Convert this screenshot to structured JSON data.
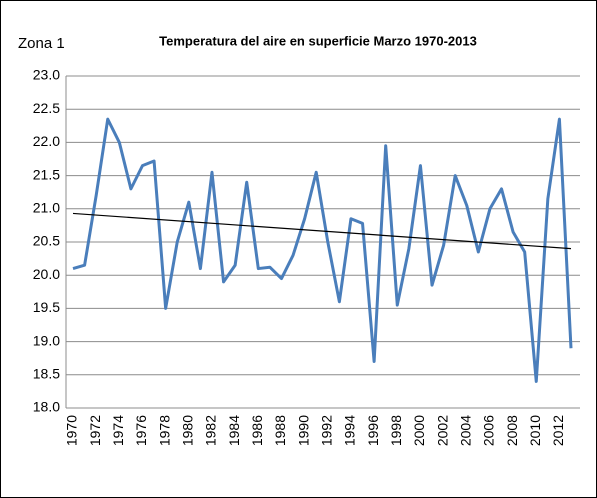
{
  "chart_data": {
    "type": "line",
    "label": "Zona  1",
    "title": "Temperatura del aire en superficie  Marzo 1970-2013",
    "categories": [
      "1970",
      null,
      "1972",
      null,
      "1974",
      null,
      "1976",
      null,
      "1978",
      null,
      "1980",
      null,
      "1982",
      null,
      "1984",
      null,
      "1986",
      null,
      "1988",
      null,
      "1990",
      null,
      "1992",
      null,
      "1994",
      null,
      "1996",
      null,
      "1998",
      null,
      "2000",
      null,
      "2002",
      null,
      "2004",
      null,
      "2006",
      null,
      "2008",
      null,
      "2010",
      null,
      "2012",
      null
    ],
    "series": [
      {
        "color": "#4a7ebb",
        "values": [
          20.1,
          20.15,
          21.2,
          22.35,
          22.0,
          21.3,
          21.65,
          21.72,
          19.5,
          20.5,
          21.1,
          20.1,
          21.55,
          19.9,
          20.15,
          21.4,
          20.1,
          20.12,
          19.95,
          20.3,
          20.85,
          21.55,
          20.5,
          19.6,
          20.85,
          20.78,
          18.7,
          21.95,
          19.55,
          20.4,
          21.65,
          19.85,
          20.45,
          21.5,
          21.05,
          20.35,
          21.0,
          21.3,
          20.65,
          20.35,
          18.4,
          21.15,
          22.35,
          18.9
        ]
      }
    ],
    "trendline": {
      "color": "#000000",
      "values": [
        20.93,
        20.4
      ]
    },
    "ylim": [
      18,
      23
    ],
    "yticks": [
      {
        "value": 18,
        "label": "18.0"
      },
      18.5,
      {
        "value": 19,
        "label": "19.0"
      },
      19.5,
      {
        "value": 20,
        "label": "20.0"
      },
      20.5,
      {
        "value": 21,
        "label": "21.0"
      },
      21.5,
      {
        "value": 22,
        "label": "22.0"
      },
      22.5,
      {
        "value": 23,
        "label": "23.0"
      }
    ],
    "grid": true
  }
}
